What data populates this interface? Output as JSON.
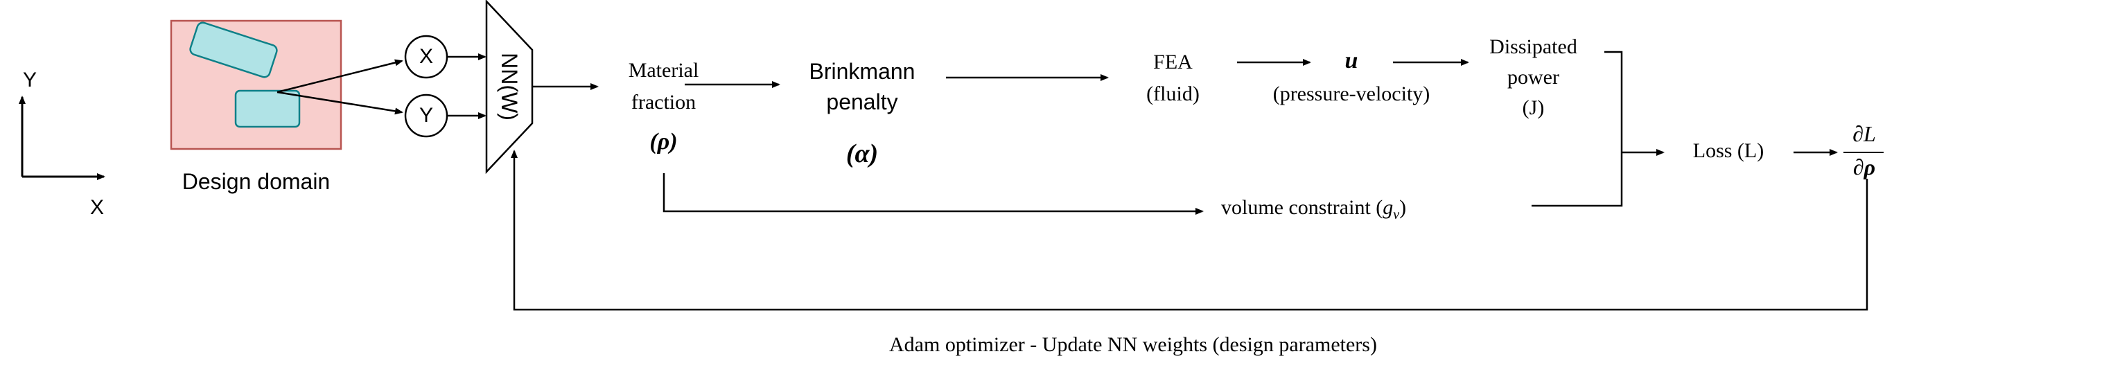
{
  "axes": {
    "x_label": "X",
    "y_label": "Y"
  },
  "design_domain": {
    "label": "Design domain",
    "fill": "#f8cecc",
    "stroke": "#b85450",
    "shape_fill": "#b0e3e6",
    "shape_stroke": "#0e8088"
  },
  "inputs": {
    "x": "X",
    "y": "Y"
  },
  "network": {
    "label": "NN(W)"
  },
  "material_fraction": {
    "line1": "Material",
    "line2": "fraction",
    "symbol": "(ρ)"
  },
  "brinkmann": {
    "line1": "Brinkmann",
    "line2": "penalty",
    "symbol": "(α)"
  },
  "fea": {
    "line1": "FEA",
    "line2": "(fluid)"
  },
  "velocity": {
    "symbol": "u",
    "caption": "(pressure-velocity)"
  },
  "dissipated": {
    "line1": "Dissipated",
    "line2": "power",
    "line3": "(J)"
  },
  "loss": {
    "label": "Loss (L)"
  },
  "gradient": {
    "numerator": "∂L",
    "denominator": "∂ρ"
  },
  "volume": {
    "label": "volume constraint (",
    "symbol": "g",
    "subscript": "v",
    "close": ")"
  },
  "feedback": {
    "label": "Adam optimizer - Update NN weights (design parameters)"
  }
}
